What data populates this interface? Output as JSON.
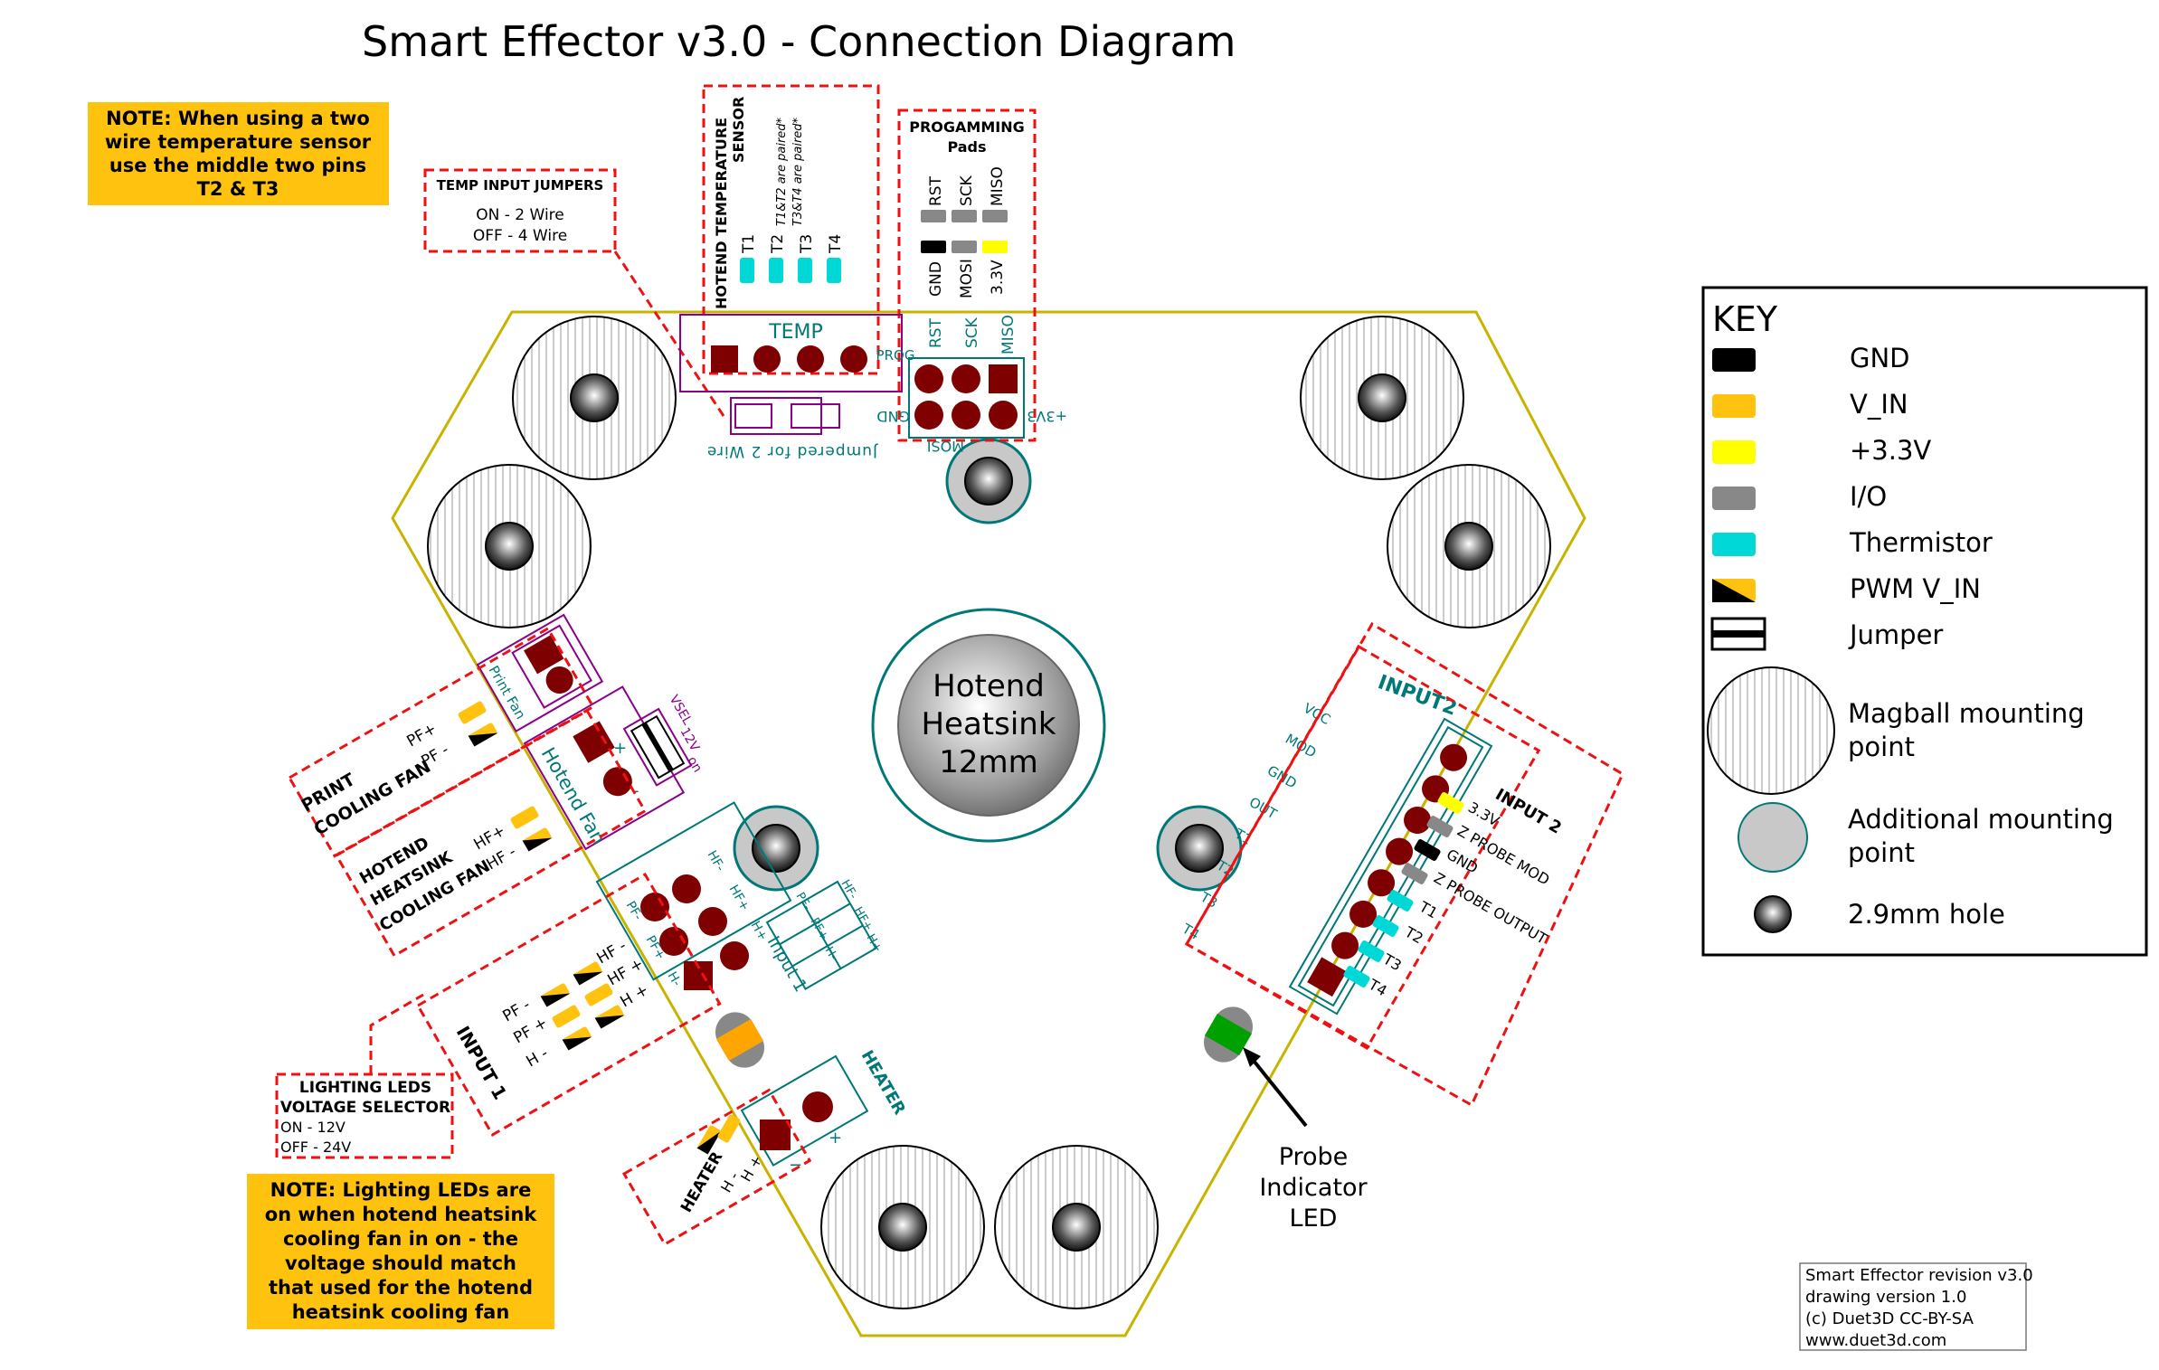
{
  "title": "Smart Effector v3.0 - Connection Diagram",
  "notes": {
    "two_wire": [
      "NOTE: When using a two",
      "wire temperature sensor",
      "use the middle two pins",
      "T2 & T3"
    ],
    "lighting": [
      "NOTE: Lighting LEDs are",
      "on when hotend heatsink",
      "cooling fan in on - the",
      "voltage should match",
      "that used for the hotend",
      "heatsink cooling fan"
    ]
  },
  "temp_jumpers": {
    "title": "TEMP INPUT JUMPERS",
    "on": "ON - 2 Wire",
    "off": "OFF - 4 Wire"
  },
  "hotend_temp": {
    "title_line1": "HOTEND TEMPERATURE",
    "title_line2": "SENSOR",
    "note1": "T1&T2 are paired*",
    "note2": "T3&T4 are paired*",
    "pins": [
      "T1",
      "T2",
      "T3",
      "T4"
    ]
  },
  "prog_pads": {
    "title_line1": "PROGAMMING",
    "title_line2": "Pads",
    "top": [
      "RST",
      "SCK",
      "MISO"
    ],
    "bottom": [
      "GND",
      "MOSI",
      "3.3V"
    ]
  },
  "board": {
    "temp_label": "TEMP",
    "prog_label": "PROG",
    "prog_top": [
      "RST",
      "SCK",
      "MISO"
    ],
    "gnd": "GND",
    "mosi": "MOSI",
    "v33": "+3V3",
    "jumpered": "Jumpered for 2 Wire",
    "hotend_lines": [
      "Hotend",
      "Heatsink",
      "12mm"
    ],
    "input2_label": "INPUT2",
    "input2_pins": [
      "VCC",
      "MOD",
      "GND",
      "OUT",
      "T1",
      "T2",
      "T3",
      "T4"
    ],
    "print_fan": "Print Fan",
    "hotend_fan": "Hotend Fan",
    "fan_plus": "+",
    "fan_minus": "-",
    "vsel": "VSEL",
    "vsel2": "12V",
    "vsel3": "on",
    "input1_label": "Input 1",
    "input1_left": [
      "PF-",
      "PF+",
      "H-"
    ],
    "input1_right": [
      "HF-",
      "HF+",
      "H+"
    ],
    "input1_table": [
      "HF-",
      "PF-",
      "HF+",
      "PF+",
      "H-",
      "H+"
    ],
    "heater_label": "HEATER",
    "heater_minus": "−",
    "heater_plus": "+"
  },
  "print_fan_box": {
    "title1": "PRINT",
    "title2": "COOLING FAN",
    "pins": [
      "PF+",
      "PF -"
    ]
  },
  "hotend_fan_box": {
    "title1": "HOTEND",
    "title2": "HEATSINK",
    "title3": "COOLING FAN",
    "pins": [
      "HF+",
      "HF -"
    ]
  },
  "input1_box": {
    "title": "INPUT 1",
    "pins": [
      "PF -",
      "PF +",
      "H -",
      "HF -",
      "HF +",
      "H +"
    ]
  },
  "lighting_box": {
    "title1": "LIGHTING LEDS",
    "title2": "VOLTAGE SELECTOR",
    "on": "ON - 12V",
    "off": "OFF - 24V"
  },
  "heater_box": {
    "title": "HEATER",
    "pins": [
      "H -",
      "H +"
    ]
  },
  "input2_box": {
    "title": "INPUT 2",
    "pins": [
      "3.3V",
      "Z PROBE MOD",
      "GND",
      "Z PROBE OUTPUT",
      "T1",
      "T2",
      "T3",
      "T4"
    ]
  },
  "probe": [
    "Probe",
    "Indicator",
    "LED"
  ],
  "key": {
    "title": "KEY",
    "items": [
      "GND",
      "V_IN",
      "+3.3V",
      "I/O",
      "Thermistor",
      "PWM V_IN",
      "Jumper"
    ],
    "magball": [
      "Magball mounting",
      "point"
    ],
    "additional": [
      "Additional mounting",
      "point"
    ],
    "hole": "2.9mm hole"
  },
  "credits": [
    "Smart Effector revision v3.0",
    "drawing version 1.0",
    "(c) Duet3D CC-BY-SA",
    "www.duet3d.com"
  ],
  "colors": {
    "gnd": "#000000",
    "vin": "#ffc20e",
    "v33": "#ffff00",
    "io": "#888888",
    "thermistor": "#00d8d8",
    "pad": "#7f0000",
    "board": "#c8b400",
    "teal": "#007878",
    "purple": "#8b008b",
    "red": "#ee1111",
    "note": "#ffc20e"
  }
}
